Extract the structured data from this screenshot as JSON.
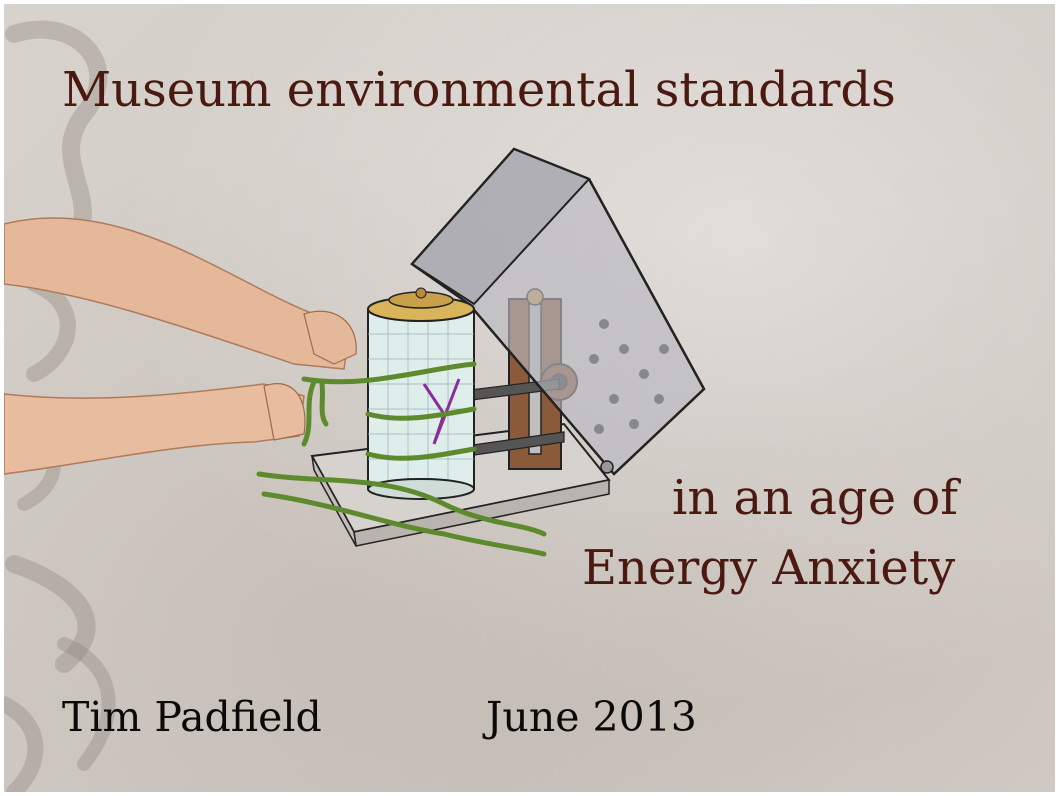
{
  "slide": {
    "title": "Museum environmental standards",
    "subtitle_line1": "in an age of",
    "subtitle_line2": "Energy Anxiety",
    "author": "Tim Padfield",
    "date": "June 2013"
  },
  "colors": {
    "background": "#d4cec8",
    "title_text": "#4a1a12",
    "footer_text": "#0c0a08"
  },
  "illustration": {
    "icon": "thermohygrograph-illustration",
    "hands_icon": "hands-tying-string-icon"
  }
}
